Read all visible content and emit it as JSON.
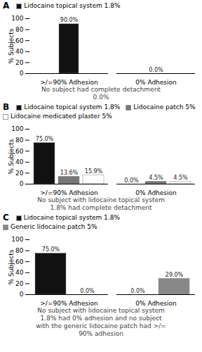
{
  "chart_data": [
    {
      "type": "bar",
      "title": "A",
      "categories": [
        ">/=90% Adhesion",
        "0% Adhesion"
      ],
      "series": [
        {
          "name": "Lidocaine topical system 1.8%",
          "color": "#111111",
          "values": [
            90.0,
            0.0
          ],
          "value_labels": [
            "90.0%",
            "0.0%"
          ]
        }
      ],
      "ylabel": "% Subjects",
      "annotation": "No subject had complete detachment\n0.0%",
      "ylim": [
        0,
        100
      ],
      "yticks": [
        0,
        20,
        40,
        60,
        80,
        100
      ],
      "data_labels": true
    },
    {
      "type": "bar",
      "title": "B",
      "categories": [
        ">/=90% Adhesion",
        "0% Adhesion"
      ],
      "series": [
        {
          "name": "Lidocaine topical system 1.8%",
          "color": "#111111",
          "values": [
            75.0,
            0.0
          ],
          "value_labels": [
            "75.0%",
            "0.0%"
          ]
        },
        {
          "name": "Lidocaine patch 5%",
          "color": "#777777",
          "values": [
            13.6,
            4.5
          ],
          "value_labels": [
            "13.6%",
            "4.5%"
          ]
        },
        {
          "name": "Lidocaine medicated plaster 5%",
          "color": "#ffffff",
          "values": [
            15.9,
            4.5
          ],
          "value_labels": [
            "15.9%",
            "4.5%"
          ]
        }
      ],
      "ylabel": "% Subjects",
      "annotation": "No subject with lidocaine topical system\n1.8% had complete detachment",
      "ylim": [
        0,
        100
      ],
      "yticks": [
        0,
        20,
        40,
        60,
        80,
        100
      ],
      "data_labels": true
    },
    {
      "type": "bar",
      "title": "C",
      "categories": [
        ">/=90% Adhesion",
        "0% Adhesion"
      ],
      "series": [
        {
          "name": "Lidocaine topical system 1.8%",
          "color": "#111111",
          "values": [
            75.0,
            0.0
          ],
          "value_labels": [
            "75.0%",
            "0.0%"
          ]
        },
        {
          "name": "Generic lidocaine patch 5%",
          "color": "#888888",
          "values": [
            0.0,
            29.0
          ],
          "value_labels": [
            "0.0%",
            "29.0%"
          ]
        }
      ],
      "ylabel": "% Subjects",
      "annotation": "No subject with lidocaine topical system\n1.8% had 0% adhesion and no subject\nwith the generic lidocaine patch had >/=\n90% adhesion",
      "ylim": [
        0,
        100
      ],
      "yticks": [
        0,
        20,
        40,
        60,
        80,
        100
      ],
      "data_labels": true
    }
  ]
}
